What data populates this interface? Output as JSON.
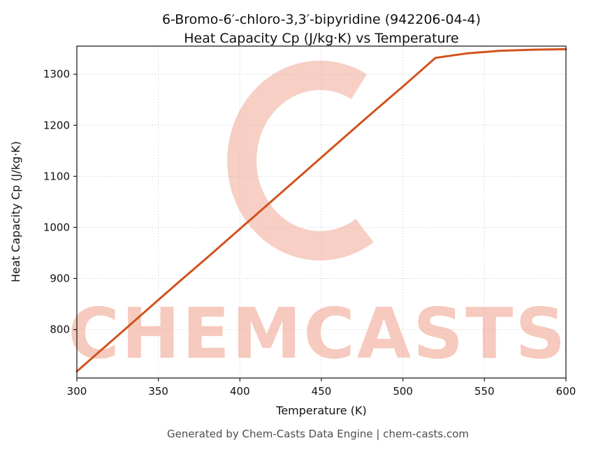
{
  "page": {
    "footer": "Generated by Chem-Casts Data Engine | chem-casts.com",
    "watermark_text": "CHEMCASTS"
  },
  "chart_data": {
    "type": "line",
    "title_line1": "6-Bromo-6′-chloro-3,3′-bipyridine (942206-04-4)",
    "title_line2": "Heat Capacity Cp (J/kg·K) vs Temperature",
    "xlabel": "Temperature (K)",
    "ylabel": "Heat Capacity Cp (J/kg·K)",
    "xlim": [
      300,
      600
    ],
    "ylim": [
      705,
      1355
    ],
    "xticks": [
      300,
      350,
      400,
      450,
      500,
      550,
      600
    ],
    "yticks": [
      800,
      900,
      1000,
      1100,
      1200,
      1300
    ],
    "grid": true,
    "line_color": "#d2521e",
    "watermark_color": "#ef9f8a",
    "series": [
      {
        "name": "Heat Capacity Cp",
        "x": [
          300,
          320,
          340,
          360,
          380,
          400,
          420,
          440,
          460,
          480,
          500,
          520,
          540,
          560,
          580,
          600
        ],
        "y": [
          718,
          774,
          830,
          886,
          941,
          997,
          1053,
          1109,
          1165,
          1221,
          1276,
          1332,
          1341,
          1346,
          1348,
          1349
        ]
      }
    ]
  }
}
